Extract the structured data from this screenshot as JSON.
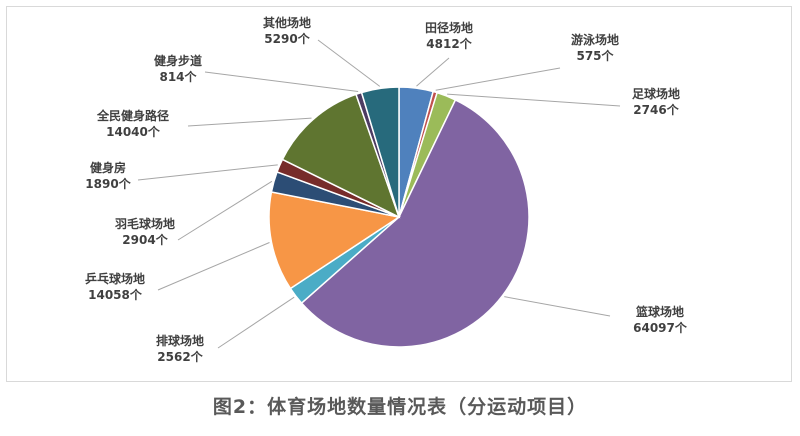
{
  "caption": "图2：体育场地数量情况表（分运动项目）",
  "chart_data": {
    "type": "pie",
    "title": "",
    "unit": "个",
    "slices": [
      {
        "name": "田径场地",
        "value": 4812,
        "color": "#4f81bd"
      },
      {
        "name": "游泳场地",
        "value": 575,
        "color": "#c0504d"
      },
      {
        "name": "足球场地",
        "value": 2746,
        "color": "#9bbb59"
      },
      {
        "name": "篮球场地",
        "value": 64097,
        "color": "#8064a2"
      },
      {
        "name": "排球场地",
        "value": 2562,
        "color": "#4bacc6"
      },
      {
        "name": "乒乓球场地",
        "value": 14058,
        "color": "#f79646"
      },
      {
        "name": "羽毛球场地",
        "value": 2904,
        "color": "#2c4d75"
      },
      {
        "name": "健身房",
        "value": 1890,
        "color": "#772c2a"
      },
      {
        "name": "全民健身路径",
        "value": 14040,
        "color": "#5f7530"
      },
      {
        "name": "健身步道",
        "value": 814,
        "color": "#4d3b62"
      },
      {
        "name": "其他场地",
        "value": 5290,
        "color": "#276a7c"
      }
    ]
  }
}
